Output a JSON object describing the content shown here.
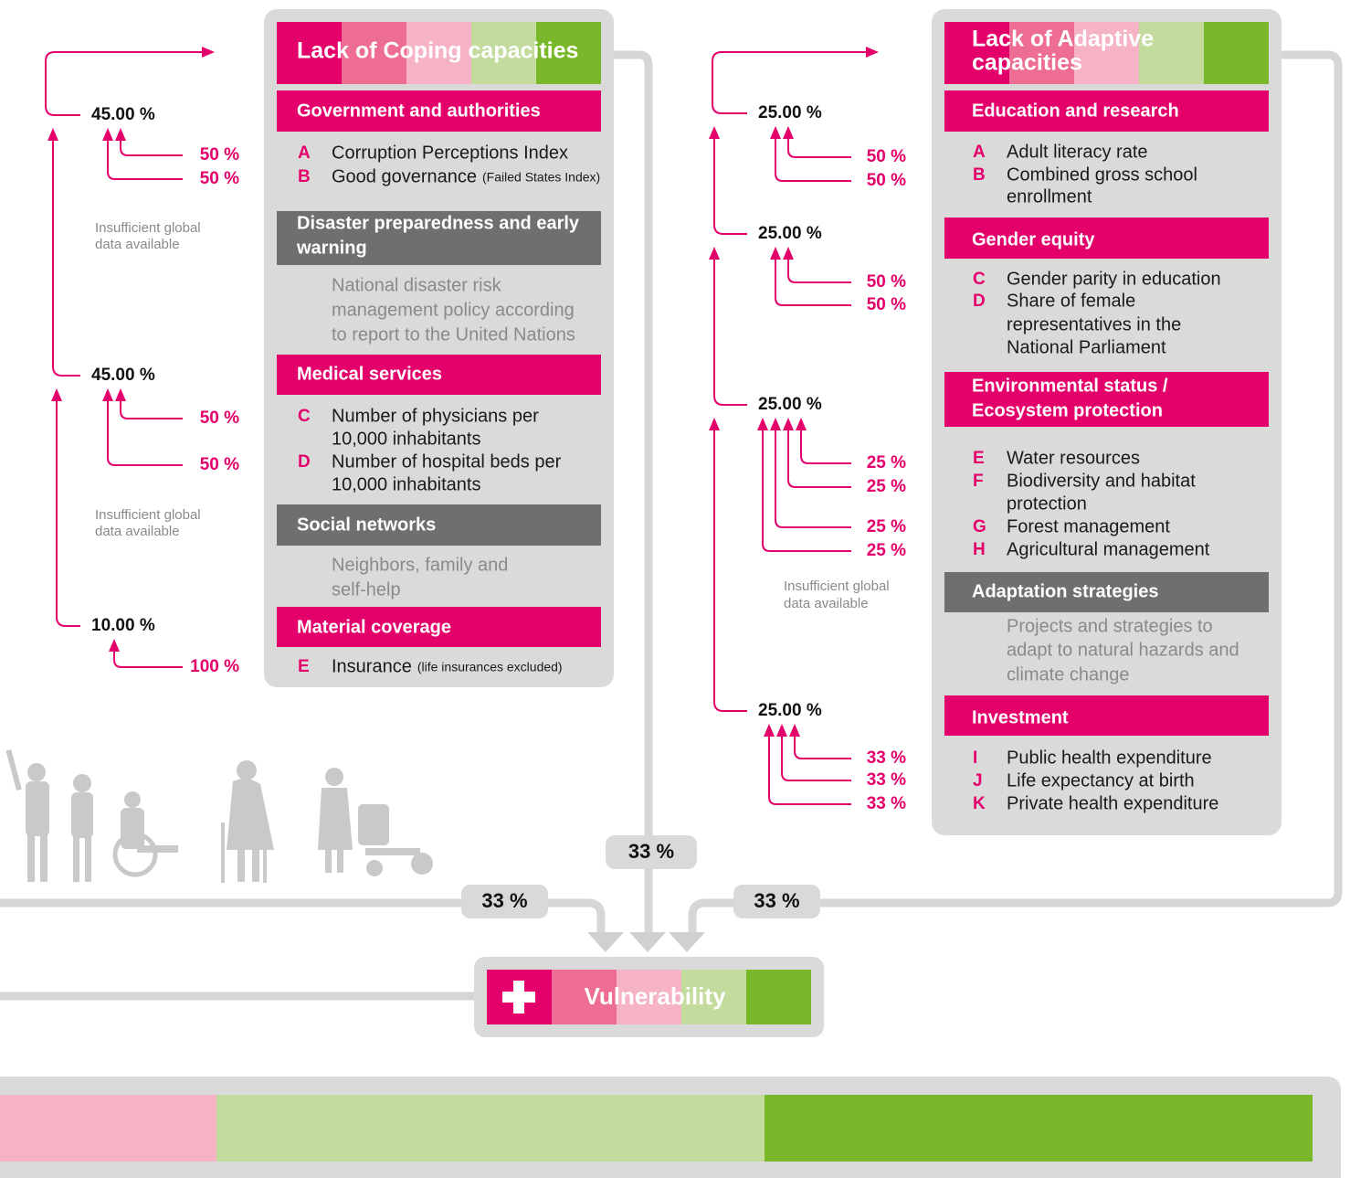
{
  "left": {
    "title": [
      "Lack of Coping capacities"
    ],
    "sections": [
      {
        "title": [
          "Government and authorities"
        ],
        "items": [
          {
            "letter": "A",
            "lines": [
              "Corruption Perceptions Index"
            ]
          },
          {
            "letter": "B",
            "lines": [
              "Good governance"
            ],
            "note": "(Failed States Index)"
          }
        ]
      },
      {
        "title": [
          "Disaster preparedness and early",
          "warning"
        ],
        "description": [
          "National disaster risk",
          "management policy according",
          "to report to the United Nations"
        ]
      },
      {
        "title": [
          "Medical services"
        ],
        "items": [
          {
            "letter": "C",
            "lines": [
              "Number of physicians per",
              "10,000 inhabitants"
            ]
          },
          {
            "letter": "D",
            "lines": [
              "Number of hospital beds per",
              "10,000 inhabitants"
            ]
          }
        ]
      },
      {
        "title": [
          "Social networks"
        ],
        "description": [
          "Neighbors, family and",
          "self-help"
        ]
      },
      {
        "title": [
          "Material coverage"
        ],
        "items": [
          {
            "letter": "E",
            "lines": [
              "Insurance"
            ],
            "note": "(life insurances excluded)"
          }
        ]
      }
    ],
    "weights": [
      {
        "value": "45.00 %",
        "parts": [
          "50 %",
          "50 %"
        ]
      },
      {
        "value": "45.00 %",
        "parts": [
          "50 %",
          "50 %"
        ]
      },
      {
        "value": "10.00 %",
        "parts": [
          "100 %"
        ]
      }
    ],
    "notes": [
      [
        "Insufficient global",
        "data available"
      ],
      [
        "Insufficient global",
        "data available"
      ]
    ]
  },
  "right": {
    "title": [
      "Lack of Adaptive",
      "capacities"
    ],
    "sections": [
      {
        "title": [
          "Education and research"
        ],
        "items": [
          {
            "letter": "A",
            "lines": [
              "Adult literacy rate"
            ]
          },
          {
            "letter": "B",
            "lines": [
              "Combined gross school",
              "enrollment"
            ]
          }
        ]
      },
      {
        "title": [
          "Gender equity"
        ],
        "items": [
          {
            "letter": "C",
            "lines": [
              "Gender parity in education"
            ]
          },
          {
            "letter": "D",
            "lines": [
              "Share of female",
              "representatives in the",
              "National Parliament"
            ]
          }
        ]
      },
      {
        "title": [
          "Environmental status /",
          "Ecosystem protection"
        ],
        "items": [
          {
            "letter": "E",
            "lines": [
              "Water resources"
            ]
          },
          {
            "letter": "F",
            "lines": [
              "Biodiversity and habitat",
              "protection"
            ]
          },
          {
            "letter": "G",
            "lines": [
              "Forest management"
            ]
          },
          {
            "letter": "H",
            "lines": [
              "Agricultural management"
            ]
          }
        ]
      },
      {
        "title": [
          "Adaptation strategies"
        ],
        "description": [
          "Projects and strategies to",
          "adapt to natural hazards and",
          "climate change"
        ]
      },
      {
        "title": [
          "Investment"
        ],
        "items": [
          {
            "letter": "I",
            "lines": [
              "Public health expenditure"
            ]
          },
          {
            "letter": "J",
            "lines": [
              "Life expectancy at birth"
            ]
          },
          {
            "letter": "K",
            "lines": [
              "Private health expenditure"
            ]
          }
        ]
      }
    ],
    "weights": [
      {
        "value": "25.00 %",
        "parts": [
          "50 %",
          "50 %"
        ]
      },
      {
        "value": "25.00 %",
        "parts": [
          "50 %",
          "50 %"
        ]
      },
      {
        "value": "25.00 %",
        "parts": [
          "25 %",
          "25 %",
          "25 %",
          "25 %"
        ]
      },
      {
        "value": "25.00 %",
        "parts": [
          "33 %",
          "33 %",
          "33 %"
        ]
      }
    ],
    "notes": [
      [
        "Insufficient global",
        "data available"
      ]
    ]
  },
  "pills": [
    "33 %",
    "33 %",
    "33 %"
  ],
  "result": "Vulnerability"
}
